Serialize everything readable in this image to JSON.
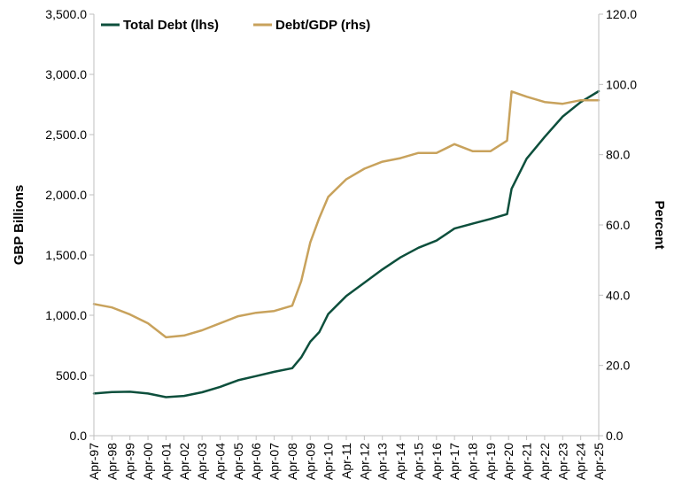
{
  "chart_data": {
    "type": "line",
    "title": "",
    "ylabel_left": "GBP Billions",
    "ylabel_right": "Percent",
    "ylim_left": [
      0,
      3500
    ],
    "ylim_right": [
      0,
      120
    ],
    "left_ticks": [
      "0.0",
      "500.0",
      "1,000.0",
      "1,500.0",
      "2,000.0",
      "2,500.0",
      "3,000.0",
      "3,500.0"
    ],
    "right_ticks": [
      "0.0",
      "20.0",
      "40.0",
      "60.0",
      "80.0",
      "100.0",
      "120.0"
    ],
    "x_tick_labels": [
      "Apr-97",
      "Apr-98",
      "Apr-99",
      "Apr-00",
      "Apr-01",
      "Apr-02",
      "Apr-03",
      "Apr-04",
      "Apr-05",
      "Apr-06",
      "Apr-07",
      "Apr-08",
      "Apr-09",
      "Apr-10",
      "Apr-11",
      "Apr-12",
      "Apr-13",
      "Apr-14",
      "Apr-15",
      "Apr-16",
      "Apr-17",
      "Apr-18",
      "Apr-19",
      "Apr-20",
      "Apr-21",
      "Apr-22",
      "Apr-23",
      "Apr-24",
      "Apr-25"
    ],
    "grid": false,
    "legend_position": "top-left",
    "series": [
      {
        "name": "Total Debt (lhs)",
        "axis": "left",
        "color": "#0d4f3c",
        "x": [
          "Apr-97",
          "Apr-98",
          "Apr-99",
          "Apr-00",
          "Apr-01",
          "Apr-02",
          "Apr-03",
          "Apr-04",
          "Apr-05",
          "Apr-06",
          "Apr-07",
          "Apr-08",
          "Oct-08",
          "Apr-09",
          "Oct-09",
          "Apr-10",
          "Apr-11",
          "Apr-12",
          "Apr-13",
          "Apr-14",
          "Apr-15",
          "Apr-16",
          "Apr-17",
          "Apr-18",
          "Apr-19",
          "Mar-20",
          "Jun-20",
          "Apr-21",
          "Apr-22",
          "Apr-23",
          "Apr-24",
          "Apr-25"
        ],
        "values": [
          350,
          362,
          365,
          350,
          320,
          330,
          360,
          405,
          460,
          495,
          530,
          560,
          650,
          780,
          860,
          1010,
          1160,
          1270,
          1380,
          1480,
          1560,
          1620,
          1720,
          1760,
          1800,
          1840,
          2050,
          2300,
          2480,
          2650,
          2770,
          2860
        ]
      },
      {
        "name": "Debt/GDP (rhs)",
        "axis": "right",
        "color": "#c8a25c",
        "x": [
          "Apr-97",
          "Apr-98",
          "Apr-99",
          "Apr-00",
          "Apr-01",
          "Apr-02",
          "Apr-03",
          "Apr-04",
          "Apr-05",
          "Apr-06",
          "Apr-07",
          "Apr-08",
          "Oct-08",
          "Apr-09",
          "Oct-09",
          "Apr-10",
          "Apr-11",
          "Apr-12",
          "Apr-13",
          "Apr-14",
          "Apr-15",
          "Apr-16",
          "Apr-17",
          "Apr-18",
          "Apr-19",
          "Mar-20",
          "Jun-20",
          "Apr-21",
          "Apr-22",
          "Apr-23",
          "Apr-24",
          "Apr-25"
        ],
        "values": [
          37.5,
          36.5,
          34.5,
          32,
          28,
          28.5,
          30,
          32,
          34,
          35,
          35.5,
          37,
          44,
          55,
          62,
          68,
          73,
          76,
          78,
          79,
          80.5,
          80.5,
          83,
          81,
          81,
          84,
          98,
          96.5,
          95,
          94.5,
          95.5,
          95.5
        ]
      }
    ]
  }
}
